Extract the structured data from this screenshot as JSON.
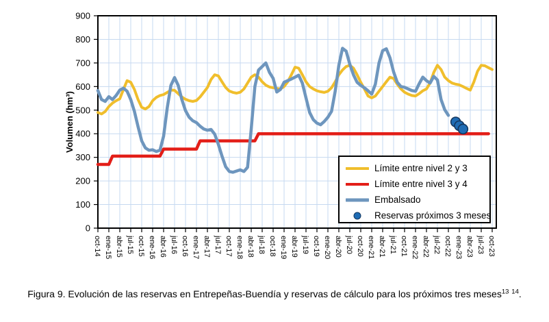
{
  "figure": {
    "caption": {
      "text": "Figura 9. Evolución de las reservas en Entrepeñas-Buendía y reservas de cálculo para los próximos tres meses",
      "footnote_refs": [
        "13",
        "14"
      ],
      "suffix": "."
    }
  },
  "legend": {
    "items": [
      {
        "label": "Límite entre nivel 2 y 3",
        "color": "#F0BE2C",
        "type": "line"
      },
      {
        "label": "Límite entre nivel 3 y 4",
        "color": "#E31E18",
        "type": "line"
      },
      {
        "label": "Embalsado",
        "color": "#6E96BE",
        "type": "line"
      },
      {
        "label": "Reservas próximos 3 meses",
        "color": "#1F6CB4",
        "type": "dot"
      }
    ]
  },
  "chart_data": {
    "type": "line",
    "title": "",
    "ylabel": "Volumen (hm³)",
    "ylim": [
      0,
      900
    ],
    "ytick_step": 100,
    "grid": true,
    "grid_color": "#C6D9F0",
    "axis_color": "#000000",
    "x_unit": "month",
    "x_monthly_start": "oct-14",
    "x_monthly_end": "oct-23",
    "x_tick_labels": [
      "oct-14",
      "ene-15",
      "abr-15",
      "jul-15",
      "oct-15",
      "ene-16",
      "abr-16",
      "jul-16",
      "oct-16",
      "ene-17",
      "abr-17",
      "jul-17",
      "oct-17",
      "ene-18",
      "abr-18",
      "jul-18",
      "oct-18",
      "ene-19",
      "abr-19",
      "jul-19",
      "oct-19",
      "ene-20",
      "abr-20",
      "jul-20",
      "oct-20",
      "ene-21",
      "abr-21",
      "jul-21",
      "oct-21",
      "ene-22",
      "abr-22",
      "jul-22",
      "oct-22",
      "ene-23",
      "abr-23",
      "jul-23",
      "oct-23"
    ],
    "series": [
      {
        "name": "Límite entre nivel 2 y 3",
        "color": "#F0BE2C",
        "stroke_width": 4,
        "start_month_index": 0,
        "values": [
          490,
          484,
          494,
          515,
          530,
          540,
          548,
          588,
          625,
          618,
          588,
          545,
          512,
          505,
          515,
          540,
          554,
          562,
          566,
          575,
          585,
          584,
          570,
          556,
          546,
          540,
          537,
          541,
          556,
          576,
          596,
          630,
          650,
          645,
          620,
          596,
          581,
          575,
          572,
          576,
          590,
          615,
          640,
          650,
          640,
          620,
          606,
          598,
          595,
          592,
          590,
          600,
          620,
          650,
          682,
          678,
          650,
          620,
          600,
          590,
          582,
          578,
          575,
          580,
          595,
          620,
          650,
          670,
          685,
          690,
          678,
          650,
          618,
          590,
          560,
          552,
          560,
          580,
          600,
          620,
          640,
          634,
          610,
          590,
          576,
          568,
          562,
          560,
          570,
          582,
          590,
          615,
          660,
          690,
          672,
          640,
          625,
          615,
          610,
          607,
          600,
          592,
          585,
          620,
          665,
          690,
          688,
          680,
          672
        ]
      },
      {
        "name": "Límite entre nivel 3 y 4",
        "color": "#E31E18",
        "stroke_width": 4.5,
        "start_month_index": 0,
        "values": [
          270,
          270,
          270,
          270,
          305,
          305,
          305,
          305,
          305,
          305,
          305,
          305,
          305,
          305,
          305,
          305,
          305,
          305,
          335,
          335,
          335,
          335,
          335,
          335,
          335,
          335,
          335,
          335,
          370,
          370,
          370,
          370,
          370,
          370,
          370,
          370,
          370,
          370,
          370,
          370,
          370,
          370,
          370,
          370,
          400,
          400,
          400,
          400,
          400,
          400,
          400,
          400,
          400,
          400,
          400,
          400,
          400,
          400,
          400,
          400,
          400,
          400,
          400,
          400,
          400,
          400,
          400,
          400,
          400,
          400,
          400,
          400,
          400,
          400,
          400,
          400,
          400,
          400,
          400,
          400,
          400,
          400,
          400,
          400,
          400,
          400,
          400,
          400,
          400,
          400,
          400,
          400,
          400,
          400,
          400,
          400,
          400,
          400,
          400,
          400,
          400,
          400,
          400,
          400,
          400,
          400,
          400,
          400
        ]
      },
      {
        "name": "Embalsado",
        "color": "#6E96BE",
        "stroke_width": 4.5,
        "start_month_index": 0,
        "values": [
          583,
          545,
          537,
          557,
          545,
          562,
          585,
          593,
          580,
          545,
          495,
          430,
          370,
          340,
          330,
          332,
          325,
          330,
          390,
          510,
          605,
          638,
          605,
          545,
          498,
          470,
          455,
          447,
          432,
          420,
          415,
          418,
          398,
          355,
          305,
          260,
          240,
          237,
          242,
          247,
          240,
          258,
          420,
          600,
          670,
          685,
          700,
          660,
          635,
          577,
          588,
          618,
          625,
          632,
          640,
          648,
          615,
          552,
          490,
          460,
          445,
          438,
          452,
          470,
          495,
          580,
          690,
          762,
          750,
          695,
          650,
          618,
          605,
          595,
          582,
          568,
          610,
          700,
          752,
          760,
          722,
          662,
          618,
          600,
          597,
          590,
          583,
          580,
          612,
          640,
          625,
          615,
          643,
          628,
          545,
          502,
          478
        ]
      }
    ],
    "points": {
      "name": "Reservas próximos 3 meses",
      "color": "#1F6CB4",
      "edge_color": "#14375F",
      "x_month_indices": [
        98,
        99,
        100
      ],
      "values": [
        450,
        434,
        420
      ]
    }
  }
}
